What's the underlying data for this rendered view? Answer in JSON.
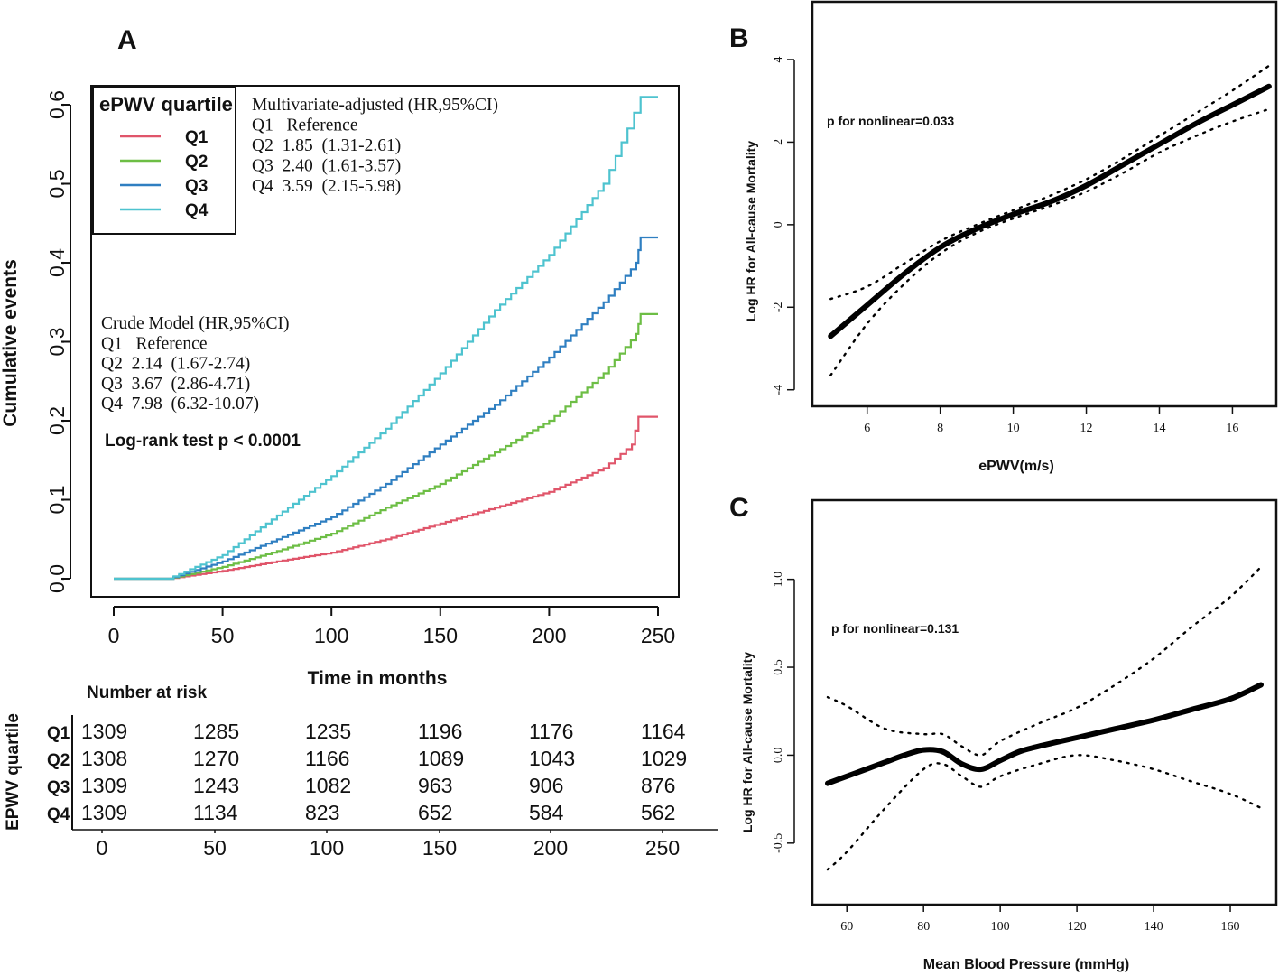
{
  "chart_data": [
    {
      "panel": "A",
      "type": "line",
      "subtype": "cumulative-incidence-step",
      "xlabel": "Time in months",
      "ylabel": "Cumulative events",
      "xlim": [
        0,
        250
      ],
      "ylim": [
        0,
        0.6
      ],
      "xticks": [
        "0",
        "50",
        "100",
        "150",
        "200",
        "250"
      ],
      "yticks": [
        "0.0",
        "0.1",
        "0.2",
        "0.3",
        "0.4",
        "0.5",
        "0.6"
      ],
      "legend": {
        "title": "ePWV quartile",
        "position": "top-left",
        "entries": [
          {
            "name": "Q1",
            "color": "#E0556A"
          },
          {
            "name": "Q2",
            "color": "#6DBE45"
          },
          {
            "name": "Q3",
            "color": "#2F7FC1"
          },
          {
            "name": "Q4",
            "color": "#4EC3CF"
          }
        ]
      },
      "multivariate_block": [
        "Multivariate-adjusted (HR,95%CI)",
        "Q1   Reference",
        "Q2  1.85  (1.31-2.61)",
        "Q3  2.40  (1.61-3.57)",
        "Q4  3.59  (2.15-5.98)"
      ],
      "crude_block": [
        "Crude Model (HR,95%CI)",
        "Q1   Reference",
        "Q2  2.14  (1.67-2.74)",
        "Q3  3.67  (2.86-4.71)",
        "Q4  7.98  (6.32-10.07)"
      ],
      "logrank": "Log-rank test p < 0.0001",
      "series": [
        {
          "name": "Q1",
          "color": "#E0556A",
          "x": [
            0,
            25,
            50,
            75,
            100,
            125,
            150,
            175,
            200,
            225,
            238,
            241,
            250
          ],
          "y": [
            0,
            0,
            0.01,
            0.022,
            0.033,
            0.05,
            0.07,
            0.09,
            0.11,
            0.14,
            0.17,
            0.205,
            0.205
          ]
        },
        {
          "name": "Q2",
          "color": "#6DBE45",
          "x": [
            0,
            25,
            50,
            75,
            100,
            125,
            150,
            175,
            200,
            225,
            240,
            242,
            250
          ],
          "y": [
            0,
            0,
            0.015,
            0.035,
            0.057,
            0.09,
            0.12,
            0.16,
            0.2,
            0.26,
            0.31,
            0.335,
            0.335
          ]
        },
        {
          "name": "Q3",
          "color": "#2F7FC1",
          "x": [
            0,
            25,
            50,
            75,
            100,
            125,
            150,
            175,
            200,
            225,
            240,
            242,
            250
          ],
          "y": [
            0,
            0,
            0.022,
            0.05,
            0.078,
            0.12,
            0.17,
            0.22,
            0.28,
            0.35,
            0.4,
            0.432,
            0.432
          ]
        },
        {
          "name": "Q4",
          "color": "#4EC3CF",
          "x": [
            0,
            25,
            50,
            75,
            100,
            125,
            150,
            175,
            200,
            225,
            236,
            242,
            250
          ],
          "y": [
            0,
            0,
            0.03,
            0.08,
            0.13,
            0.19,
            0.26,
            0.34,
            0.41,
            0.5,
            0.57,
            0.61,
            0.61
          ]
        }
      ]
    },
    {
      "panel": "A-risk",
      "type": "table",
      "title": "Number at risk",
      "row_axis_label": "EPWV quartile",
      "columns": [
        "0",
        "50",
        "100",
        "150",
        "200",
        "250"
      ],
      "rows": [
        {
          "label": "Q1",
          "values": [
            "1309",
            "1285",
            "1235",
            "1196",
            "1176",
            "1164"
          ]
        },
        {
          "label": "Q2",
          "values": [
            "1308",
            "1270",
            "1166",
            "1089",
            "1043",
            "1029"
          ]
        },
        {
          "label": "Q3",
          "values": [
            "1309",
            "1243",
            "1082",
            "963",
            "906",
            "876"
          ]
        },
        {
          "label": "Q4",
          "values": [
            "1309",
            "1134",
            "823",
            "652",
            "584",
            "562"
          ]
        }
      ]
    },
    {
      "panel": "B",
      "type": "line",
      "subtype": "restricted-cubic-spline",
      "xlabel": "ePWV(m/s)",
      "ylabel": "Log HR for  All-cause Mortality",
      "annotation": "p for nonlinear=0.033",
      "xlim": [
        4.5,
        17.2
      ],
      "ylim": [
        -4.4,
        5.4
      ],
      "xticks": [
        6,
        8,
        10,
        12,
        14,
        16
      ],
      "yticks": [
        -4,
        -2,
        0,
        2,
        4
      ],
      "series": [
        {
          "name": "estimate",
          "style": "solid",
          "x": [
            5,
            6,
            7,
            8,
            9,
            10,
            11,
            12,
            13,
            14,
            15,
            16,
            17
          ],
          "y": [
            -2.7,
            -1.95,
            -1.2,
            -0.55,
            -0.1,
            0.25,
            0.55,
            0.95,
            1.45,
            1.95,
            2.45,
            2.9,
            3.35
          ]
        },
        {
          "name": "upper 95% CI",
          "style": "dotted",
          "x": [
            5,
            6,
            7,
            8,
            9,
            10,
            11,
            12,
            13,
            14,
            15,
            16,
            17
          ],
          "y": [
            -1.8,
            -1.5,
            -0.95,
            -0.4,
            0.0,
            0.35,
            0.7,
            1.1,
            1.6,
            2.15,
            2.7,
            3.25,
            3.85
          ]
        },
        {
          "name": "lower 95% CI",
          "style": "dotted",
          "x": [
            5,
            6,
            7,
            8,
            9,
            10,
            11,
            12,
            13,
            14,
            15,
            16,
            17
          ],
          "y": [
            -3.65,
            -2.4,
            -1.45,
            -0.7,
            -0.2,
            0.15,
            0.45,
            0.8,
            1.25,
            1.75,
            2.15,
            2.5,
            2.8
          ]
        }
      ]
    },
    {
      "panel": "C",
      "type": "line",
      "subtype": "restricted-cubic-spline",
      "xlabel": "Mean Blood Pressure (mmHg)",
      "ylabel": "Log HR for All-cause Mortality",
      "annotation": "p for nonlinear=0.131",
      "xlim": [
        51,
        172
      ],
      "ylim": [
        -0.85,
        1.45
      ],
      "xticks": [
        60,
        80,
        100,
        120,
        140,
        160
      ],
      "yticks": [
        "-0.5",
        "0.0",
        "0.5",
        "1.0"
      ],
      "series": [
        {
          "name": "estimate",
          "style": "solid",
          "x": [
            55,
            60,
            65,
            70,
            75,
            80,
            85,
            90,
            95,
            100,
            105,
            110,
            120,
            130,
            140,
            150,
            160,
            168
          ],
          "y": [
            -0.16,
            -0.12,
            -0.08,
            -0.04,
            0.0,
            0.03,
            0.02,
            -0.05,
            -0.08,
            -0.03,
            0.02,
            0.05,
            0.1,
            0.15,
            0.2,
            0.26,
            0.32,
            0.4
          ]
        },
        {
          "name": "upper 95% CI",
          "style": "dotted",
          "x": [
            55,
            60,
            70,
            80,
            85,
            90,
            95,
            100,
            110,
            120,
            130,
            140,
            150,
            160,
            168
          ],
          "y": [
            0.33,
            0.28,
            0.15,
            0.12,
            0.12,
            0.05,
            0.0,
            0.08,
            0.18,
            0.27,
            0.4,
            0.55,
            0.73,
            0.9,
            1.07
          ]
        },
        {
          "name": "lower 95% CI",
          "style": "dotted",
          "x": [
            55,
            60,
            70,
            80,
            85,
            90,
            95,
            100,
            110,
            120,
            130,
            140,
            150,
            160,
            168
          ],
          "y": [
            -0.65,
            -0.55,
            -0.3,
            -0.08,
            -0.05,
            -0.12,
            -0.18,
            -0.12,
            -0.05,
            0.0,
            -0.03,
            -0.08,
            -0.15,
            -0.22,
            -0.3
          ]
        }
      ]
    }
  ],
  "panel_labels": {
    "a": "A",
    "b": "B",
    "c": "C"
  }
}
